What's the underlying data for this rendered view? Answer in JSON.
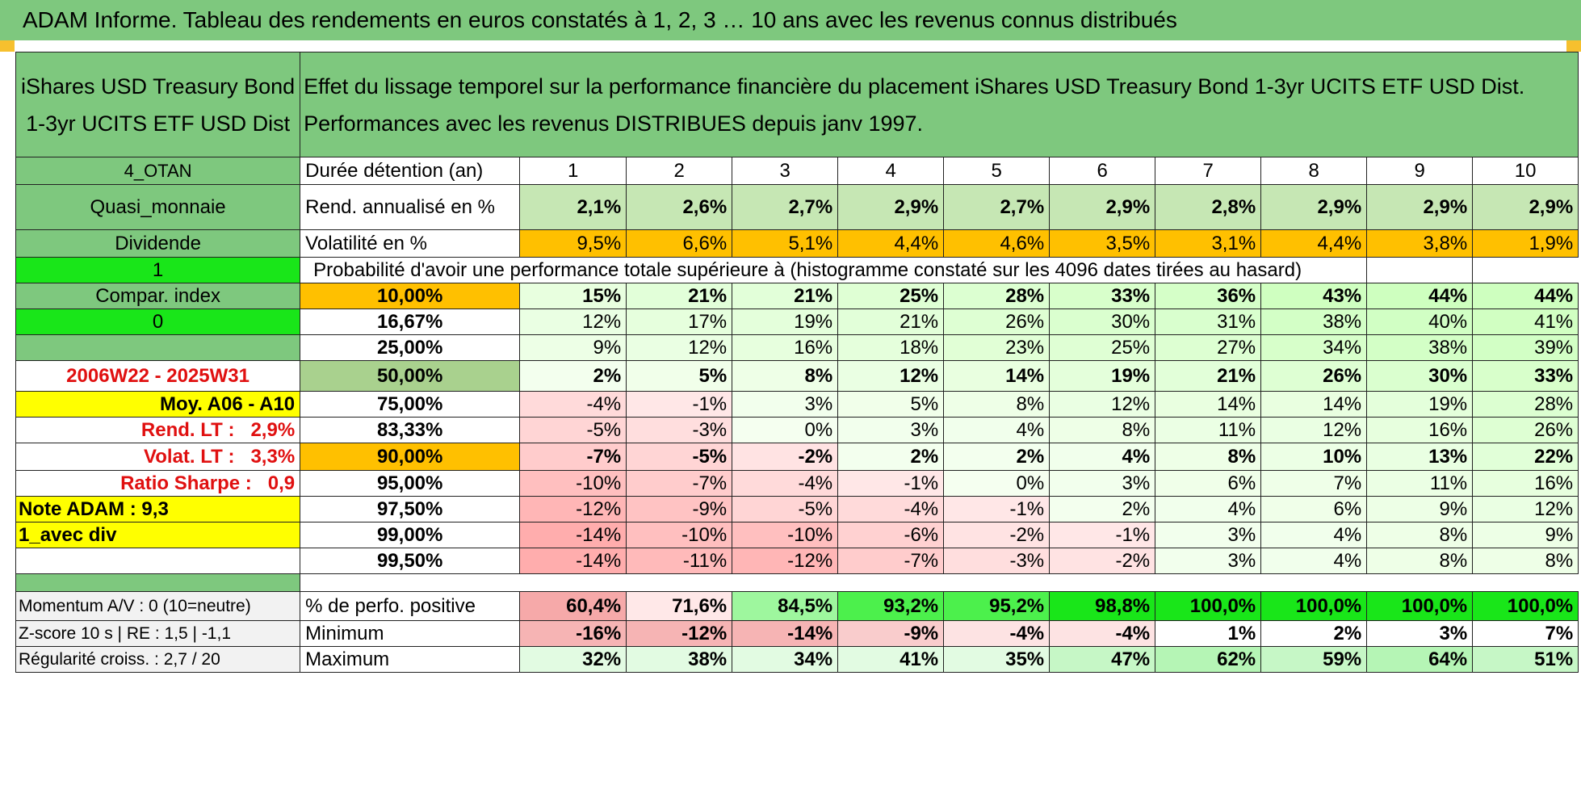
{
  "title": "ADAM Informe. Tableau des rendements en euros constatés à 1, 2, 3 … 10 ans avec les revenus connus distribués",
  "fund_name_line1": "iShares USD Treasury Bond",
  "fund_name_line2": "1-3yr UCITS ETF USD Dist",
  "desc_line1": "Effet du lissage temporel sur la performance financière du placement iShares USD Treasury Bond 1-3yr UCITS ETF USD Dist.",
  "desc_line2": "Performances avec les revenus DISTRIBUES depuis janv 1997.",
  "years": [
    "1",
    "2",
    "3",
    "4",
    "5",
    "6",
    "7",
    "8",
    "9",
    "10"
  ],
  "side": {
    "category": "4_OTAN",
    "asset_class": "Quasi_monnaie",
    "dividend_label": "Dividende",
    "dividend_flag": "1",
    "compar_label": "Compar. index",
    "compar_flag": "0",
    "period": "2006W22 - 2025W31",
    "moy": "Moy. A06 - A10",
    "rend_lt_label": "Rend. LT :",
    "rend_lt_value": "2,9%",
    "volat_lt_label": "Volat. LT :",
    "volat_lt_value": "3,3%",
    "sharpe_label": "Ratio Sharpe :",
    "sharpe_value": "0,9",
    "note": "Note ADAM : 9,3",
    "div_mode": "1_avec div"
  },
  "row_labels": {
    "duration": "Durée détention (an)",
    "rend": "Rend. annualisé en %",
    "vol": "Volatilité en %",
    "prob_header": "Probabilité d'avoir une performance totale supérieure à (histogramme constaté sur les 4096 dates tirées au hasard)"
  },
  "rend": [
    "2,1%",
    "2,6%",
    "2,7%",
    "2,9%",
    "2,7%",
    "2,9%",
    "2,8%",
    "2,9%",
    "2,9%",
    "2,9%"
  ],
  "vol": [
    "9,5%",
    "6,6%",
    "5,1%",
    "4,4%",
    "4,6%",
    "3,5%",
    "3,1%",
    "4,4%",
    "3,8%",
    "1,9%"
  ],
  "prob_rows": [
    {
      "p": "10,00%",
      "v": [
        "15%",
        "21%",
        "21%",
        "25%",
        "28%",
        "33%",
        "36%",
        "43%",
        "44%",
        "44%"
      ]
    },
    {
      "p": "16,67%",
      "v": [
        "12%",
        "17%",
        "19%",
        "21%",
        "26%",
        "30%",
        "31%",
        "38%",
        "40%",
        "41%"
      ]
    },
    {
      "p": "25,00%",
      "v": [
        "9%",
        "12%",
        "16%",
        "18%",
        "23%",
        "25%",
        "27%",
        "34%",
        "38%",
        "39%"
      ]
    },
    {
      "p": "50,00%",
      "v": [
        "2%",
        "5%",
        "8%",
        "12%",
        "14%",
        "19%",
        "21%",
        "26%",
        "30%",
        "33%"
      ]
    },
    {
      "p": "75,00%",
      "v": [
        "-4%",
        "-1%",
        "3%",
        "5%",
        "8%",
        "12%",
        "14%",
        "14%",
        "19%",
        "28%"
      ]
    },
    {
      "p": "83,33%",
      "v": [
        "-5%",
        "-3%",
        "0%",
        "3%",
        "4%",
        "8%",
        "11%",
        "12%",
        "16%",
        "26%"
      ]
    },
    {
      "p": "90,00%",
      "v": [
        "-7%",
        "-5%",
        "-2%",
        "2%",
        "2%",
        "4%",
        "8%",
        "10%",
        "13%",
        "22%"
      ]
    },
    {
      "p": "95,00%",
      "v": [
        "-10%",
        "-7%",
        "-4%",
        "-1%",
        "0%",
        "3%",
        "6%",
        "7%",
        "11%",
        "16%"
      ]
    },
    {
      "p": "97,50%",
      "v": [
        "-12%",
        "-9%",
        "-5%",
        "-4%",
        "-1%",
        "2%",
        "4%",
        "6%",
        "9%",
        "12%"
      ]
    },
    {
      "p": "99,00%",
      "v": [
        "-14%",
        "-10%",
        "-10%",
        "-6%",
        "-2%",
        "-1%",
        "3%",
        "4%",
        "8%",
        "9%"
      ]
    },
    {
      "p": "99,50%",
      "v": [
        "-14%",
        "-11%",
        "-12%",
        "-7%",
        "-3%",
        "-2%",
        "3%",
        "4%",
        "8%",
        "8%"
      ]
    }
  ],
  "bottom": {
    "momentum": "Momentum A/V : 0 (10=neutre)",
    "zscore": "Z-score 10 s | RE : 1,5 | -1,1",
    "regularite": "Régularité croiss. : 2,7 / 20",
    "pos_label": "% de perfo. positive",
    "min_label": "Minimum",
    "max_label": "Maximum",
    "pos": [
      "60,4%",
      "71,6%",
      "84,5%",
      "93,2%",
      "95,2%",
      "98,8%",
      "100,0%",
      "100,0%",
      "100,0%",
      "100,0%"
    ],
    "min": [
      "-16%",
      "-12%",
      "-14%",
      "-9%",
      "-4%",
      "-4%",
      "1%",
      "2%",
      "3%",
      "7%"
    ],
    "max": [
      "32%",
      "38%",
      "34%",
      "41%",
      "35%",
      "47%",
      "62%",
      "59%",
      "64%",
      "51%"
    ]
  },
  "colors": {
    "header_green": "#7ec87e",
    "bright_green": "#19e619",
    "yellow": "#ffff00",
    "orange": "#ffc000",
    "red_text": "#e01010"
  }
}
